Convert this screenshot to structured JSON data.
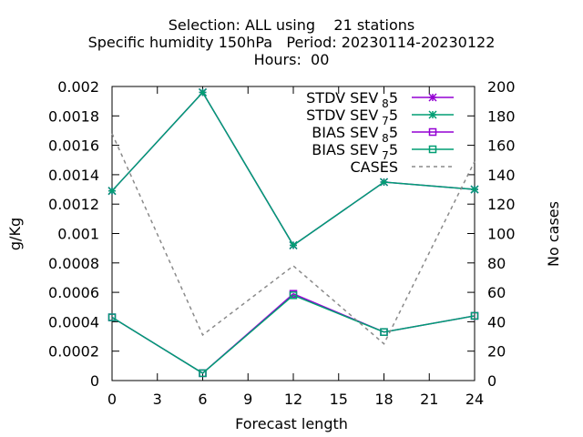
{
  "chart_data": {
    "type": "line",
    "title_lines": [
      "Selection: ALL using    21 stations",
      "Specific humidity 150hPa   Period: 20230114-20230122",
      "Hours:  00"
    ],
    "xlabel": "Forecast length",
    "ylabel": "g/Kg",
    "y2label": "No cases",
    "x": [
      0,
      6,
      12,
      18,
      24
    ],
    "xlim": [
      0,
      24
    ],
    "xticks": [
      0,
      3,
      6,
      9,
      12,
      15,
      18,
      21,
      24
    ],
    "ylim": [
      0,
      0.002
    ],
    "yticks": [
      "0",
      "0.0002",
      "0.0004",
      "0.0006",
      "0.0008",
      "0.001",
      "0.0012",
      "0.0014",
      "0.0016",
      "0.0018",
      "0.002"
    ],
    "y2lim": [
      0,
      200
    ],
    "y2ticks": [
      0,
      20,
      40,
      60,
      80,
      100,
      120,
      140,
      160,
      180,
      200
    ],
    "grid": false,
    "legend_position": "top-right",
    "series": [
      {
        "name": "STDV SEV",
        "sub": "8",
        "suffix": "5",
        "color": "#9400d3",
        "marker": "star",
        "dash": false,
        "axis": "y1",
        "values": [
          0.00129,
          0.00196,
          0.00092,
          0.00135,
          0.0013
        ]
      },
      {
        "name": "STDV SEV",
        "sub": "7",
        "suffix": "5",
        "color": "#009e73",
        "marker": "star",
        "dash": false,
        "axis": "y1",
        "values": [
          0.00129,
          0.00196,
          0.00092,
          0.00135,
          0.0013
        ]
      },
      {
        "name": "BIAS SEV",
        "sub": "8",
        "suffix": "5",
        "color": "#9400d3",
        "marker": "square",
        "dash": false,
        "axis": "y1",
        "values": [
          0.00043,
          5e-05,
          0.00059,
          0.00033,
          0.00044
        ]
      },
      {
        "name": "BIAS SEV",
        "sub": "7",
        "suffix": "5",
        "color": "#009e73",
        "marker": "square",
        "dash": false,
        "axis": "y1",
        "values": [
          0.00043,
          5e-05,
          0.00058,
          0.00033,
          0.00044
        ]
      },
      {
        "name": "CASES",
        "sub": "",
        "suffix": "",
        "color": "#8a8a8a",
        "marker": "none",
        "dash": true,
        "axis": "y2",
        "values": [
          168,
          31,
          78,
          25,
          149
        ]
      }
    ]
  }
}
